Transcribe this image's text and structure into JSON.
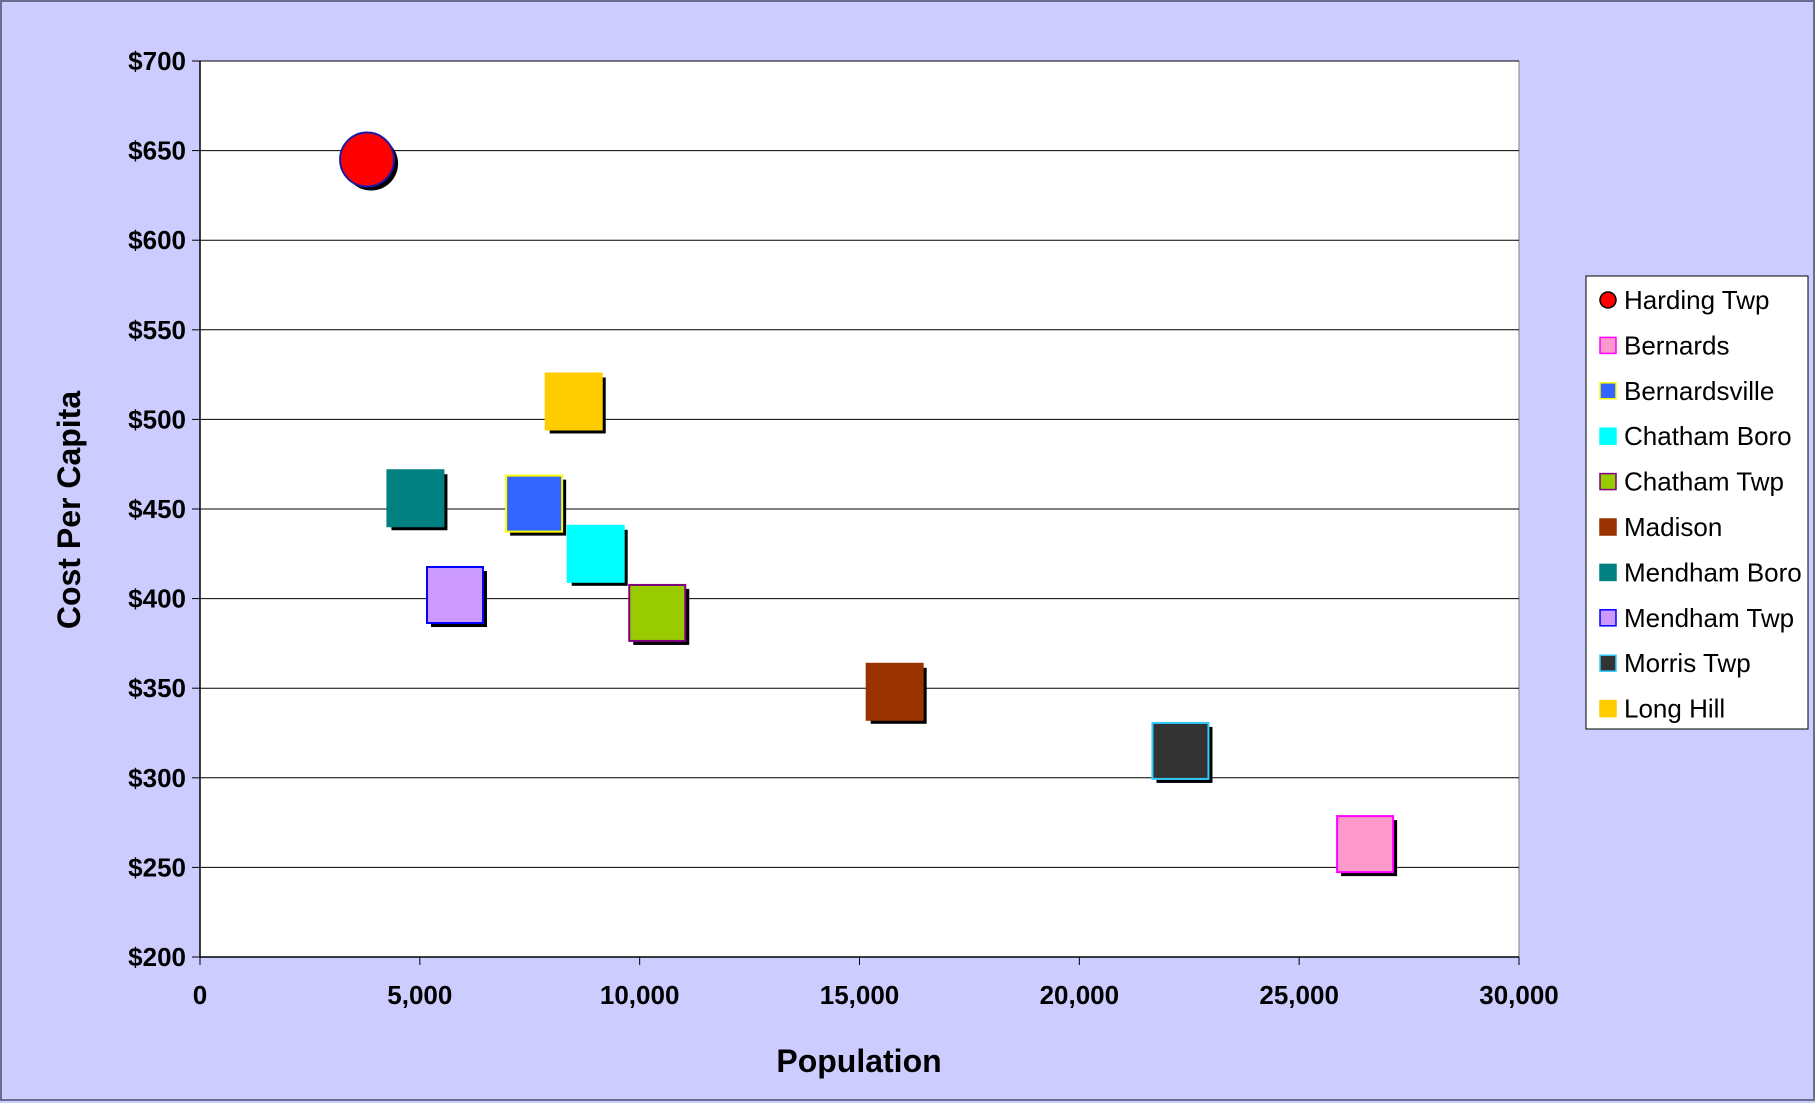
{
  "chart_data": {
    "type": "scatter",
    "xlabel": "Population",
    "ylabel": "Cost Per Capita",
    "xlim": [
      0,
      30000
    ],
    "ylim": [
      200,
      700
    ],
    "x_ticks": [
      0,
      5000,
      10000,
      15000,
      20000,
      25000,
      30000
    ],
    "x_tick_labels": [
      "0",
      "5,000",
      "10,000",
      "15,000",
      "20,000",
      "25,000",
      "30,000"
    ],
    "y_ticks": [
      200,
      250,
      300,
      350,
      400,
      450,
      500,
      550,
      600,
      650,
      700
    ],
    "y_tick_labels": [
      "$200",
      "$250",
      "$300",
      "$350",
      "$400",
      "$450",
      "$500",
      "$550",
      "$600",
      "$650",
      "$700"
    ],
    "grid": "horizontal",
    "legend_position": "right",
    "series": [
      {
        "name": "Harding Twp",
        "marker": "circle",
        "fill": "#ff0000",
        "edge": "#1a1aa6",
        "x": 3800,
        "y": 645
      },
      {
        "name": "Bernards",
        "marker": "square",
        "fill": "#ff99cc",
        "edge": "#ff00ff",
        "x": 26500,
        "y": 263
      },
      {
        "name": "Bernardsville",
        "marker": "square",
        "fill": "#3366ff",
        "edge": "#ffff00",
        "x": 7600,
        "y": 453
      },
      {
        "name": "Chatham Boro",
        "marker": "square",
        "fill": "#00ffff",
        "edge": "#00ffff",
        "x": 9000,
        "y": 425
      },
      {
        "name": "Chatham Twp",
        "marker": "square",
        "fill": "#99cc00",
        "edge": "#800080",
        "x": 10400,
        "y": 392
      },
      {
        "name": "Madison",
        "marker": "square",
        "fill": "#993300",
        "edge": "#993300",
        "x": 15800,
        "y": 348
      },
      {
        "name": "Mendham Boro",
        "marker": "square",
        "fill": "#008080",
        "edge": "#008080",
        "x": 4900,
        "y": 456
      },
      {
        "name": "Mendham Twp",
        "marker": "square",
        "fill": "#cc99ff",
        "edge": "#0000ff",
        "x": 5800,
        "y": 402
      },
      {
        "name": "Morris Twp",
        "marker": "square",
        "fill": "#333333",
        "edge": "#33ccff",
        "x": 22300,
        "y": 315
      },
      {
        "name": "Long Hill",
        "marker": "square",
        "fill": "#ffcc00",
        "edge": "#ffcc00",
        "x": 8500,
        "y": 510
      }
    ]
  }
}
